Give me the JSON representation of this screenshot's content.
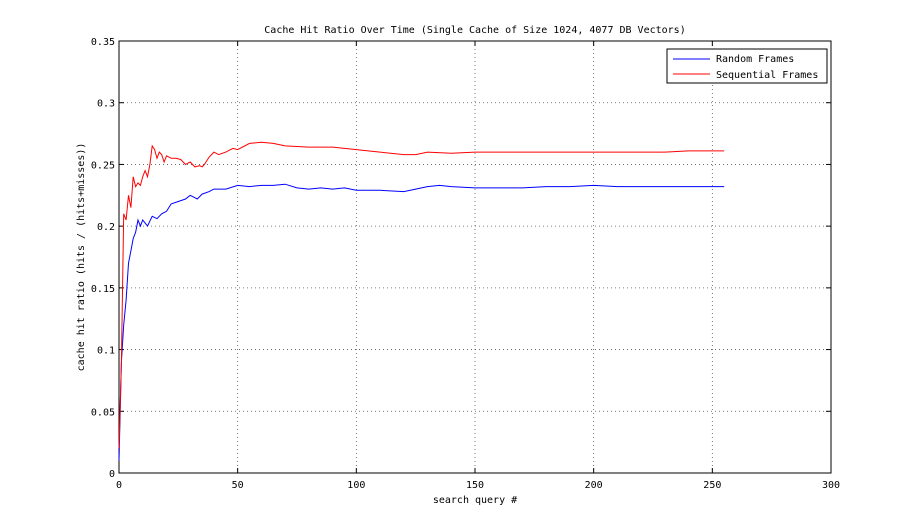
{
  "chart_data": {
    "type": "line",
    "title": "Cache Hit Ratio Over Time (Single Cache of Size 1024, 4077 DB Vectors)",
    "xlabel": "search query #",
    "ylabel": "cache hit ratio (hits / (hits+misses))",
    "xlim": [
      0,
      300
    ],
    "ylim": [
      0,
      0.35
    ],
    "xticks": [
      0,
      50,
      100,
      150,
      200,
      250,
      300
    ],
    "yticks": [
      0,
      0.05,
      0.1,
      0.15,
      0.2,
      0.25,
      0.3,
      0.35
    ],
    "xtick_labels": [
      "0",
      "50",
      "100",
      "150",
      "200",
      "250",
      "300"
    ],
    "ytick_labels": [
      "0",
      "0.05",
      "0.1",
      "0.15",
      "0.2",
      "0.25",
      "0.3",
      "0.35"
    ],
    "grid": true,
    "legend_position": "top-right",
    "series": [
      {
        "name": "Random Frames",
        "color": "#0000ff",
        "x": [
          0,
          1,
          2,
          3,
          4,
          5,
          6,
          7,
          8,
          9,
          10,
          12,
          14,
          16,
          18,
          20,
          22,
          25,
          28,
          30,
          33,
          35,
          38,
          40,
          45,
          50,
          55,
          60,
          65,
          70,
          75,
          80,
          85,
          90,
          95,
          100,
          110,
          120,
          125,
          130,
          135,
          140,
          150,
          160,
          170,
          180,
          190,
          200,
          210,
          220,
          230,
          240,
          250,
          255
        ],
        "y": [
          0.01,
          0.09,
          0.12,
          0.14,
          0.17,
          0.18,
          0.19,
          0.195,
          0.205,
          0.2,
          0.205,
          0.2,
          0.208,
          0.206,
          0.21,
          0.212,
          0.218,
          0.22,
          0.222,
          0.225,
          0.222,
          0.226,
          0.228,
          0.23,
          0.23,
          0.233,
          0.232,
          0.233,
          0.233,
          0.234,
          0.231,
          0.23,
          0.231,
          0.23,
          0.231,
          0.229,
          0.229,
          0.228,
          0.23,
          0.232,
          0.233,
          0.232,
          0.231,
          0.231,
          0.231,
          0.232,
          0.232,
          0.233,
          0.232,
          0.232,
          0.232,
          0.232,
          0.232,
          0.232
        ]
      },
      {
        "name": "Sequential Frames",
        "color": "#ff0000",
        "x": [
          0,
          1,
          2,
          3,
          4,
          5,
          6,
          7,
          8,
          9,
          10,
          11,
          12,
          13,
          14,
          15,
          16,
          17,
          18,
          19,
          20,
          22,
          24,
          26,
          28,
          30,
          32,
          34,
          35,
          36,
          38,
          40,
          42,
          45,
          48,
          50,
          55,
          60,
          65,
          70,
          80,
          90,
          100,
          110,
          120,
          125,
          130,
          140,
          150,
          160,
          170,
          180,
          190,
          200,
          210,
          220,
          230,
          240,
          250,
          255
        ],
        "y": [
          0.02,
          0.09,
          0.21,
          0.205,
          0.225,
          0.215,
          0.24,
          0.232,
          0.235,
          0.233,
          0.24,
          0.245,
          0.24,
          0.25,
          0.265,
          0.262,
          0.255,
          0.26,
          0.258,
          0.252,
          0.257,
          0.255,
          0.255,
          0.254,
          0.25,
          0.252,
          0.248,
          0.249,
          0.248,
          0.25,
          0.256,
          0.26,
          0.258,
          0.26,
          0.263,
          0.262,
          0.267,
          0.268,
          0.267,
          0.265,
          0.264,
          0.264,
          0.262,
          0.26,
          0.258,
          0.258,
          0.26,
          0.259,
          0.26,
          0.26,
          0.26,
          0.26,
          0.26,
          0.26,
          0.26,
          0.26,
          0.26,
          0.261,
          0.261,
          0.261
        ]
      }
    ]
  }
}
